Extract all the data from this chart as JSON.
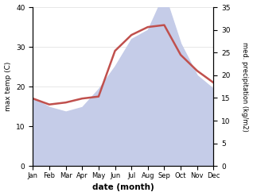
{
  "months": [
    "Jan",
    "Feb",
    "Mar",
    "Apr",
    "May",
    "Jun",
    "Jul",
    "Aug",
    "Sep",
    "Oct",
    "Nov",
    "Dec"
  ],
  "temp": [
    17.0,
    15.5,
    16.0,
    17.0,
    17.5,
    29.0,
    33.0,
    35.0,
    35.5,
    28.0,
    24.0,
    21.0
  ],
  "precip": [
    15.0,
    13.0,
    12.0,
    13.0,
    17.0,
    22.0,
    28.0,
    30.0,
    38.0,
    27.0,
    20.0,
    17.0
  ],
  "temp_color": "#c0504d",
  "precip_fill_color": "#c5cce8",
  "left_ylim": [
    0,
    40
  ],
  "right_ylim": [
    0,
    35
  ],
  "left_yticks": [
    0,
    10,
    20,
    30,
    40
  ],
  "right_yticks": [
    0,
    5,
    10,
    15,
    20,
    25,
    30,
    35
  ],
  "left_ylabel": "max temp (C)",
  "right_ylabel": "med. precipitation (kg/m2)",
  "xlabel": "date (month)",
  "bg_color": "#ffffff"
}
